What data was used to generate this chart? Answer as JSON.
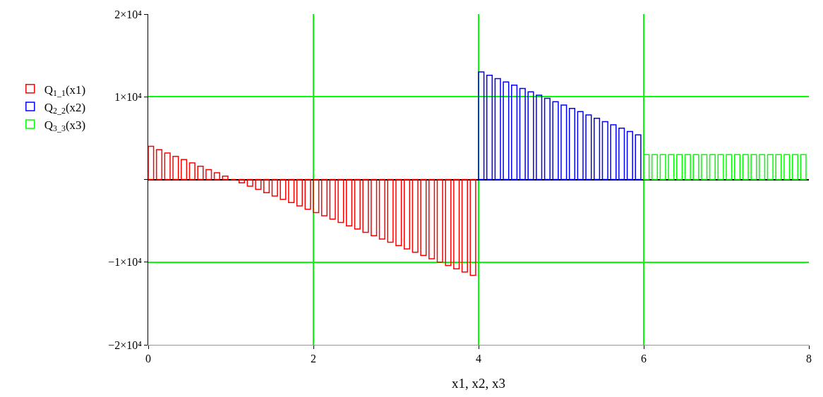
{
  "chart_data": {
    "type": "bar",
    "xlabel": "x1, x2, x3",
    "xlim": [
      0,
      8
    ],
    "xticks": [
      0,
      2,
      4,
      6,
      8
    ],
    "ylim": [
      -20000,
      20000
    ],
    "yticks": [
      {
        "value": -20000,
        "label": "−2×10⁴"
      },
      {
        "value": -10000,
        "label": "−1×10⁴"
      },
      {
        "value": 0,
        "label": null
      },
      {
        "value": 10000,
        "label": "1×10⁴"
      },
      {
        "value": 20000,
        "label": "2×10⁴"
      }
    ],
    "grid": true,
    "legend": "left",
    "series": [
      {
        "name": "Q$_{1_1}$(x1)",
        "color": "#ff0000",
        "x": [
          0,
          0.1,
          0.2,
          0.3,
          0.4,
          0.5,
          0.6,
          0.7,
          0.8,
          0.9,
          1.0,
          1.1,
          1.2,
          1.3,
          1.4,
          1.5,
          1.6,
          1.7,
          1.8,
          1.9,
          2.0,
          2.1,
          2.2,
          2.3,
          2.4,
          2.5,
          2.6,
          2.7,
          2.8,
          2.9,
          3.0,
          3.1,
          3.2,
          3.3,
          3.4,
          3.5,
          3.6,
          3.7,
          3.8,
          3.9
        ],
        "values": [
          4000,
          3600,
          3200,
          2800,
          2400,
          2000,
          1600,
          1200,
          800,
          400,
          0,
          -400,
          -800,
          -1200,
          -1600,
          -2000,
          -2400,
          -2800,
          -3200,
          -3600,
          -4000,
          -4400,
          -4800,
          -5200,
          -5600,
          -6000,
          -6400,
          -6800,
          -7200,
          -7600,
          -8000,
          -8400,
          -8800,
          -9200,
          -9600,
          -10000,
          -10400,
          -10800,
          -11200,
          -11600
        ]
      },
      {
        "name": "Q$_{2_2}$(x2)",
        "color": "#0000ff",
        "x": [
          4.0,
          4.1,
          4.2,
          4.3,
          4.4,
          4.5,
          4.6,
          4.7,
          4.8,
          4.9,
          5.0,
          5.1,
          5.2,
          5.3,
          5.4,
          5.5,
          5.6,
          5.7,
          5.8,
          5.9
        ],
        "values": [
          13000,
          12600,
          12200,
          11800,
          11400,
          11000,
          10600,
          10200,
          9800,
          9400,
          9000,
          8600,
          8200,
          7800,
          7400,
          7000,
          6600,
          6200,
          5800,
          5400
        ]
      },
      {
        "name": "Q$_{3_3}$(x3)",
        "color": "#00ff00",
        "x": [
          6.0,
          6.1,
          6.2,
          6.3,
          6.4,
          6.5,
          6.6,
          6.7,
          6.8,
          6.9,
          7.0,
          7.1,
          7.2,
          7.3,
          7.4,
          7.5,
          7.6,
          7.7,
          7.8,
          7.9
        ],
        "values": [
          3000,
          3000,
          3000,
          3000,
          3000,
          3000,
          3000,
          3000,
          3000,
          3000,
          3000,
          3000,
          3000,
          3000,
          3000,
          3000,
          3000,
          3000,
          3000,
          3000
        ]
      }
    ]
  }
}
